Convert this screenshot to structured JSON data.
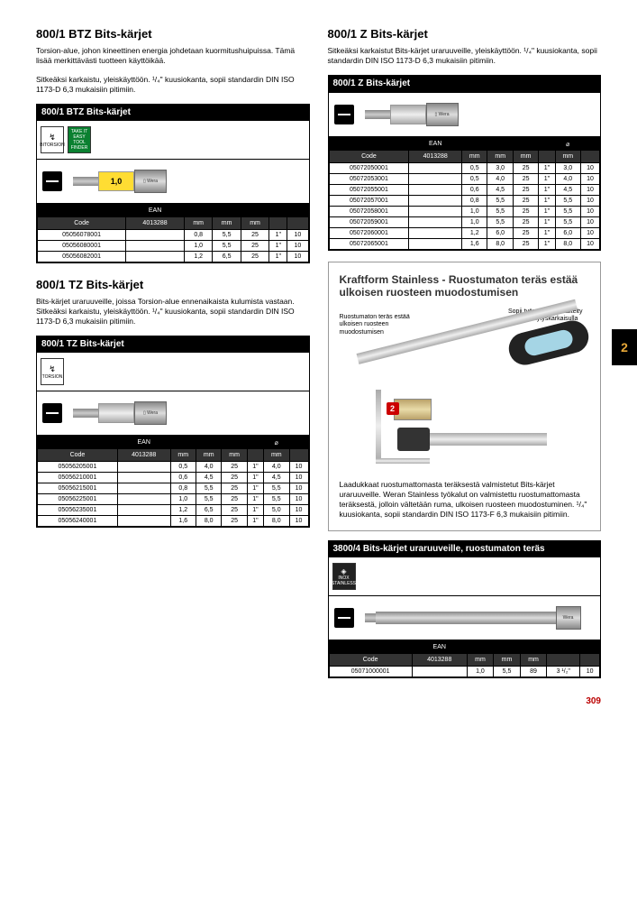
{
  "page_number": "309",
  "sidebar_tab": "2",
  "sections": {
    "btz": {
      "title": "800/1 BTZ Bits-kärjet",
      "desc1": "Torsion-alue, johon kineettinen energia johdetaan kuormitushuipuissa. Tämä lisää merkittävästi tuotteen käyttöikää.",
      "desc2": "Sitkeäksi karkaistu, yleiskäyttöön. ¹/₄\" kuusiokanta, sopii standardin DIN ISO 1173-D 6,3 mukaisiin pitimiin.",
      "black_header": "800/1 BTZ Bits-kärjet",
      "bit_label": "1,0",
      "icon1_label": "BITORSION",
      "icon2_label": "TAKE IT EASY TOOL FINDER"
    },
    "tz": {
      "title": "800/1 TZ Bits-kärjet",
      "desc": "Bits-kärjet uraruuveille, joissa Torsion-alue ennenaikaista kulumista vastaan. Sitkeäksi karkaistu, yleiskäyttöön. ¹/₄\" kuusiokanta, sopii standardin DIN ISO 1173-D 6,3 mukaisiin pitimiin.",
      "black_header": "800/1 TZ Bits-kärjet",
      "icon1_label": "TORSION"
    },
    "z": {
      "title": "800/1 Z Bits-kärjet",
      "desc": "Sitkeäksi karkaistut Bits-kärjet uraruuveille, yleiskäyttöön. ¹/₄\" kuusiokanta, sopii standardin DIN ISO 1173-D 6,3 mukaisiin pitimiin.",
      "black_header": "800/1 Z Bits-kärjet"
    },
    "stainless_info": {
      "title": "Kraftform Stainless - Ruostumaton teräs estää ulkoisen ruosteen muodostumisen",
      "callout1": "Ruostumaton teräs estää ulkoisen ruosteen muodostumisen",
      "callout2": "Sopii työpajoihin - käsitelty tyhjiö-jäädytyskarkaisulla",
      "footer": "Laadukkaat ruostumattomasta teräksestä valmistetut Bits-kärjet uraruuveille. Weran Stainless työkalut on valmistettu ruostumattomasta teräksestä, jolloin vältetään ruma, ulkoisen ruosteen muodostuminen. ¹/₄\" kuusiokanta, sopii standardin DIN ISO 1173-F 6,3 mukaisiin pitimiin."
    },
    "stainless_bits": {
      "black_header": "3800/4 Bits-kärjet uraruuveille, ruostumaton teräs",
      "icon1_label": "INOX STAINLESS"
    }
  },
  "tables": {
    "btz": {
      "h1": [
        "",
        "EAN",
        "",
        "",
        "",
        "",
        ""
      ],
      "h2": [
        "Code",
        "4013288",
        "mm",
        "mm",
        "mm",
        "",
        ""
      ],
      "rows": [
        [
          "05056078001",
          "",
          "0,8",
          "5,5",
          "25",
          "1\"",
          "10"
        ],
        [
          "05056080001",
          "",
          "1,0",
          "5,5",
          "25",
          "1\"",
          "10"
        ],
        [
          "05056082001",
          "",
          "1,2",
          "6,5",
          "25",
          "1\"",
          "10"
        ]
      ]
    },
    "tz": {
      "h1": [
        "",
        "EAN",
        "",
        "",
        "",
        "",
        "⌀",
        ""
      ],
      "h2": [
        "Code",
        "4013288",
        "mm",
        "mm",
        "mm",
        "",
        "mm",
        ""
      ],
      "rows": [
        [
          "05056205001",
          "",
          "0,5",
          "4,0",
          "25",
          "1\"",
          "4,0",
          "10"
        ],
        [
          "05056210001",
          "",
          "0,6",
          "4,5",
          "25",
          "1\"",
          "4,5",
          "10"
        ],
        [
          "05056215001",
          "",
          "0,8",
          "5,5",
          "25",
          "1\"",
          "5,5",
          "10"
        ],
        [
          "05056225001",
          "",
          "1,0",
          "5,5",
          "25",
          "1\"",
          "5,5",
          "10"
        ],
        [
          "05056235001",
          "",
          "1,2",
          "6,5",
          "25",
          "1\"",
          "5,0",
          "10"
        ],
        [
          "05056240001",
          "",
          "1,6",
          "8,0",
          "25",
          "1\"",
          "8,0",
          "10"
        ]
      ]
    },
    "z": {
      "h1": [
        "",
        "EAN",
        "",
        "",
        "",
        "",
        "⌀",
        ""
      ],
      "h2": [
        "Code",
        "4013288",
        "mm",
        "mm",
        "mm",
        "",
        "mm",
        ""
      ],
      "rows": [
        [
          "05072050001",
          "",
          "0,5",
          "3,0",
          "25",
          "1\"",
          "3,0",
          "10"
        ],
        [
          "05072053001",
          "",
          "0,5",
          "4,0",
          "25",
          "1\"",
          "4,0",
          "10"
        ],
        [
          "05072055001",
          "",
          "0,6",
          "4,5",
          "25",
          "1\"",
          "4,5",
          "10"
        ],
        [
          "05072057001",
          "",
          "0,8",
          "5,5",
          "25",
          "1\"",
          "5,5",
          "10"
        ],
        [
          "05072058001",
          "",
          "1,0",
          "5,5",
          "25",
          "1\"",
          "5,5",
          "10"
        ],
        [
          "05072059001",
          "",
          "1,0",
          "5,5",
          "25",
          "1\"",
          "5,5",
          "10"
        ],
        [
          "05072060001",
          "",
          "1,2",
          "6,0",
          "25",
          "1\"",
          "6,0",
          "10"
        ],
        [
          "05072065001",
          "",
          "1,6",
          "8,0",
          "25",
          "1\"",
          "8,0",
          "10"
        ]
      ]
    },
    "stainless": {
      "h1": [
        "",
        "EAN",
        "",
        "",
        "",
        "",
        ""
      ],
      "h2": [
        "Code",
        "4013288",
        "mm",
        "mm",
        "mm",
        "",
        ""
      ],
      "rows": [
        [
          "05071000001",
          "",
          "1,0",
          "5,5",
          "89",
          "3 ¹/₂\"",
          "10"
        ]
      ]
    }
  }
}
